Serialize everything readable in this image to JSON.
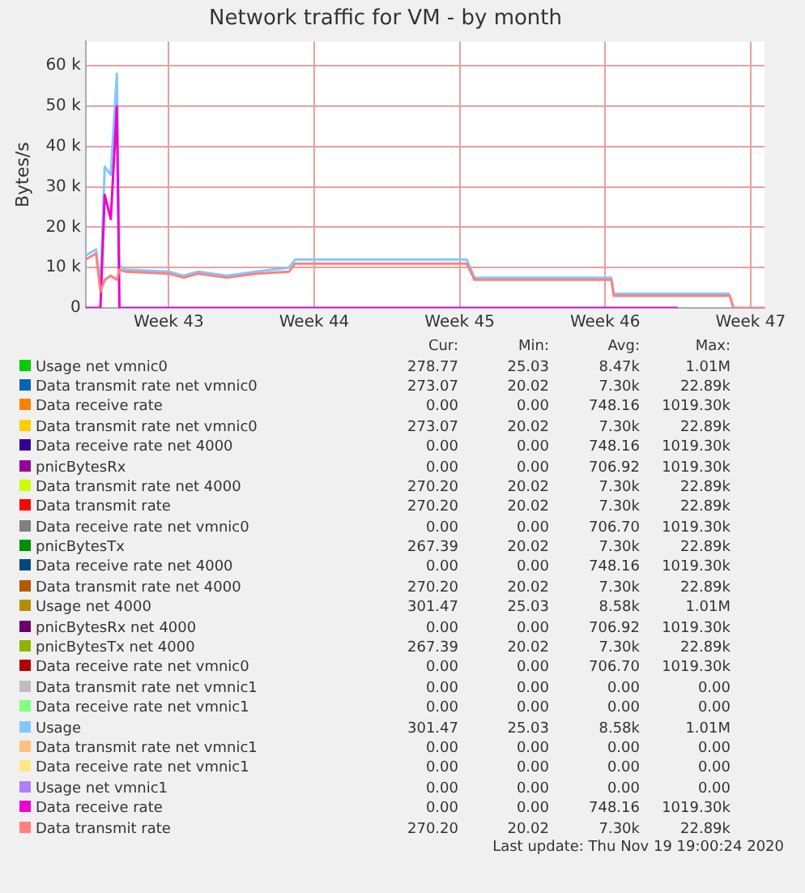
{
  "chart_data": {
    "type": "line",
    "title": "Network traffic for VM - by month",
    "ylabel": "Bytes/s",
    "grid": true,
    "legend": "bottom",
    "x": [
      "2020-10-18T12:00",
      "2020-10-19T00:00",
      "2020-10-19T05:00",
      "2020-10-19T10:00",
      "2020-10-19T17:00",
      "2020-10-20T00:00",
      "2020-10-20T03:00",
      "2020-10-20T10:00",
      "2020-10-22T12:00",
      "2020-10-23T05:00",
      "2020-10-23T22:00",
      "2020-10-25T07:00",
      "2020-10-26T17:00",
      "2020-10-28T07:00",
      "2020-10-28T14:00",
      "2020-11-02T00:00",
      "2020-11-05T20:00",
      "2020-11-06T05:00",
      "2020-11-11T19:00",
      "2020-11-12T19:00",
      "2020-11-12T22:00",
      "2020-11-16T00:00",
      "2020-11-18T12:00",
      "2020-11-18T16:00",
      "2020-11-20T04:00"
    ],
    "xlim": [
      "2020-10-18T12:00",
      "2020-11-20T04:00"
    ],
    "xticks": [
      {
        "value": "2020-10-22T12:00",
        "label": "Week 43"
      },
      {
        "value": "2020-10-29T12:00",
        "label": "Week 44"
      },
      {
        "value": "2020-11-05T12:00",
        "label": "Week 45"
      },
      {
        "value": "2020-11-12T12:00",
        "label": "Week 46"
      },
      {
        "value": "2020-11-19T12:00",
        "label": "Week 47"
      }
    ],
    "ylim": [
      0,
      66000
    ],
    "yticks": [
      0,
      {
        "value": 10000,
        "label": "10 k"
      },
      {
        "value": 20000,
        "label": "20 k"
      },
      {
        "value": 30000,
        "label": "30 k"
      },
      {
        "value": 40000,
        "label": "40 k"
      },
      {
        "value": 50000,
        "label": "50 k"
      },
      {
        "value": 60000,
        "label": "60 k"
      }
    ],
    "series": [
      {
        "name": "Usage net vmnic0",
        "color": "#00cc00",
        "values": [
          null,
          null,
          null,
          null,
          null,
          null,
          null,
          null,
          null,
          null,
          null,
          null,
          null,
          null,
          null,
          null,
          null,
          null,
          null,
          null,
          null,
          null,
          null,
          null,
          null
        ]
      },
      {
        "name": "Data transmit rate net vmnic0",
        "color": "#0066b3",
        "values": [
          null,
          null,
          null,
          null,
          null,
          null,
          null,
          null,
          null,
          null,
          null,
          null,
          null,
          null,
          null,
          null,
          null,
          null,
          null,
          null,
          null,
          null,
          null,
          null,
          null
        ]
      },
      {
        "name": "Data receive rate",
        "color": "#ff8000",
        "values": [
          null,
          null,
          null,
          null,
          null,
          null,
          null,
          null,
          null,
          null,
          null,
          null,
          null,
          null,
          null,
          null,
          null,
          null,
          null,
          null,
          null,
          null,
          null,
          null,
          null
        ]
      },
      {
        "name": "Data transmit rate net vmnic0",
        "color": "#ffcc00",
        "values": [
          null,
          null,
          null,
          null,
          null,
          null,
          null,
          null,
          null,
          null,
          null,
          null,
          null,
          null,
          null,
          null,
          null,
          null,
          null,
          null,
          null,
          null,
          null,
          null,
          null
        ]
      },
      {
        "name": "Data receive rate net 4000",
        "color": "#330099",
        "values": [
          null,
          null,
          null,
          null,
          null,
          null,
          null,
          null,
          null,
          null,
          null,
          null,
          null,
          null,
          null,
          null,
          null,
          null,
          null,
          null,
          null,
          null,
          null,
          null,
          null
        ]
      },
      {
        "name": "pnicBytesRx",
        "color": "#990099",
        "values": [
          null,
          null,
          null,
          null,
          null,
          null,
          null,
          null,
          null,
          null,
          null,
          null,
          null,
          null,
          null,
          null,
          null,
          null,
          null,
          null,
          null,
          null,
          null,
          null,
          null
        ]
      },
      {
        "name": "Data transmit rate net 4000",
        "color": "#ccff00",
        "values": [
          null,
          null,
          null,
          null,
          null,
          null,
          null,
          null,
          null,
          null,
          null,
          null,
          null,
          null,
          null,
          null,
          null,
          null,
          null,
          null,
          null,
          null,
          null,
          null,
          null
        ]
      },
      {
        "name": "Data transmit rate",
        "color": "#ff0000",
        "values": [
          null,
          null,
          null,
          null,
          null,
          null,
          null,
          null,
          null,
          null,
          null,
          null,
          null,
          null,
          null,
          null,
          null,
          null,
          null,
          null,
          null,
          null,
          null,
          null,
          null
        ]
      },
      {
        "name": "Data receive rate net vmnic0",
        "color": "#808080",
        "values": [
          null,
          null,
          null,
          null,
          null,
          null,
          null,
          null,
          null,
          null,
          null,
          null,
          null,
          null,
          null,
          null,
          null,
          null,
          null,
          null,
          null,
          null,
          null,
          null,
          null
        ]
      },
      {
        "name": "pnicBytesTx",
        "color": "#008f00",
        "values": [
          null,
          null,
          null,
          null,
          null,
          null,
          null,
          null,
          null,
          null,
          null,
          null,
          null,
          null,
          null,
          null,
          null,
          null,
          null,
          null,
          null,
          null,
          null,
          null,
          null
        ]
      },
      {
        "name": "Data receive rate net 4000",
        "color": "#00487d",
        "values": [
          null,
          null,
          null,
          null,
          null,
          null,
          null,
          null,
          null,
          null,
          null,
          null,
          null,
          null,
          null,
          null,
          null,
          null,
          null,
          null,
          null,
          null,
          null,
          null,
          null
        ]
      },
      {
        "name": "Data transmit rate net 4000",
        "color": "#b35a00",
        "values": [
          null,
          null,
          null,
          null,
          null,
          null,
          null,
          null,
          null,
          null,
          null,
          null,
          null,
          null,
          null,
          null,
          null,
          null,
          null,
          null,
          null,
          null,
          null,
          null,
          null
        ]
      },
      {
        "name": "Usage net 4000",
        "color": "#b38f00",
        "values": [
          null,
          null,
          null,
          null,
          null,
          null,
          null,
          null,
          null,
          null,
          null,
          null,
          null,
          null,
          null,
          null,
          null,
          null,
          null,
          null,
          null,
          null,
          null,
          null,
          null
        ]
      },
      {
        "name": "pnicBytesRx net 4000",
        "color": "#6b006b",
        "values": [
          null,
          null,
          null,
          null,
          null,
          null,
          null,
          null,
          null,
          null,
          null,
          null,
          null,
          null,
          null,
          null,
          null,
          null,
          null,
          null,
          null,
          null,
          null,
          null,
          null
        ]
      },
      {
        "name": "pnicBytesTx net 4000",
        "color": "#8fb300",
        "values": [
          null,
          null,
          null,
          null,
          null,
          null,
          null,
          null,
          null,
          null,
          null,
          null,
          null,
          null,
          null,
          null,
          null,
          null,
          null,
          null,
          null,
          null,
          null,
          null,
          null
        ]
      },
      {
        "name": "Data receive rate net vmnic0",
        "color": "#b30000",
        "values": [
          null,
          null,
          null,
          null,
          null,
          null,
          null,
          null,
          null,
          null,
          null,
          null,
          null,
          null,
          null,
          null,
          null,
          null,
          null,
          null,
          null,
          null,
          null,
          null,
          null
        ]
      },
      {
        "name": "Data transmit rate net vmnic1",
        "color": "#bebebe",
        "values": [
          null,
          null,
          null,
          null,
          null,
          null,
          null,
          null,
          null,
          null,
          null,
          null,
          null,
          null,
          null,
          null,
          null,
          null,
          null,
          null,
          null,
          null,
          null,
          null,
          null
        ]
      },
      {
        "name": "Data receive rate net vmnic1",
        "color": "#80ff80",
        "values": [
          null,
          null,
          null,
          null,
          null,
          null,
          null,
          null,
          null,
          null,
          null,
          null,
          null,
          null,
          null,
          null,
          null,
          null,
          null,
          null,
          null,
          null,
          null,
          null,
          null
        ]
      },
      {
        "name": "Usage",
        "color": "#80c9ff",
        "values": [
          13000,
          14500,
          5000,
          35000,
          33000,
          58000,
          10500,
          9500,
          9000,
          8000,
          9000,
          8000,
          9000,
          10000,
          12000,
          12000,
          12000,
          7500,
          7500,
          7500,
          3500,
          3500,
          3500,
          null,
          null
        ]
      },
      {
        "name": "Data transmit rate net vmnic1",
        "color": "#ffc080",
        "values": [
          null,
          null,
          null,
          null,
          null,
          null,
          null,
          null,
          null,
          null,
          null,
          null,
          null,
          null,
          null,
          null,
          null,
          null,
          null,
          null,
          null,
          null,
          null,
          null,
          null
        ]
      },
      {
        "name": "Data receive rate net vmnic1",
        "color": "#ffe680",
        "values": [
          null,
          null,
          null,
          null,
          null,
          null,
          null,
          null,
          null,
          null,
          null,
          null,
          null,
          null,
          null,
          null,
          null,
          null,
          null,
          null,
          null,
          null,
          null,
          null,
          null
        ]
      },
      {
        "name": "Usage net vmnic1",
        "color": "#aa80ff",
        "values": [
          null,
          null,
          null,
          null,
          null,
          null,
          null,
          null,
          null,
          null,
          null,
          null,
          null,
          null,
          null,
          null,
          null,
          null,
          null,
          null,
          null,
          null,
          null,
          null,
          null
        ]
      },
      {
        "name": "Data receive rate",
        "color": "#ee00cc",
        "values": [
          0,
          0,
          0,
          28000,
          22000,
          50000,
          0,
          0,
          0,
          0,
          0,
          0,
          0,
          0,
          0,
          0,
          0,
          0,
          0,
          0,
          0,
          0,
          null,
          null,
          null
        ]
      },
      {
        "name": "Data transmit rate",
        "color": "#ff8080",
        "values": [
          12000,
          13500,
          4000,
          7000,
          8000,
          7000,
          9500,
          9000,
          8500,
          7500,
          8500,
          7500,
          8500,
          9000,
          11000,
          11000,
          11000,
          7000,
          7000,
          7000,
          3000,
          3000,
          3000,
          0,
          0
        ]
      }
    ],
    "annotations": [
      "Cur:",
      "Min:",
      "Avg:",
      "Max:",
      "278.77 25.03 8.47k 1.01M",
      "273.07 20.02 7.30k 22.89k",
      "0.00 0.00 748.16 1019.30k",
      "273.07 20.02 7.30k 22.89k",
      "0.00 0.00 748.16 1019.30k",
      "0.00 0.00 706.92 1019.30k",
      "270.20 20.02 7.30k 22.89k",
      "270.20 20.02 7.30k 22.89k",
      "0.00 0.00 706.70 1019.30k",
      "267.39 20.02 7.30k 22.89k",
      "0.00 0.00 748.16 1019.30k",
      "270.20 20.02 7.30k 22.89k",
      "301.47 25.03 8.58k 1.01M",
      "0.00 0.00 706.92 1019.30k",
      "267.39 20.02 7.30k 22.89k",
      "0.00 0.00 706.70 1019.30k",
      "0.00 0.00 0.00 0.00",
      "0.00 0.00 0.00 0.00",
      "301.47 25.03 8.58k 1.01M",
      "0.00 0.00 0.00 0.00",
      "0.00 0.00 0.00 0.00",
      "0.00 0.00 0.00 0.00",
      "0.00 0.00 748.16 1019.30k",
      "270.20 20.02 7.30k 22.89k",
      "Last update: Thu Nov 19 19:00:24 2020"
    ]
  }
}
